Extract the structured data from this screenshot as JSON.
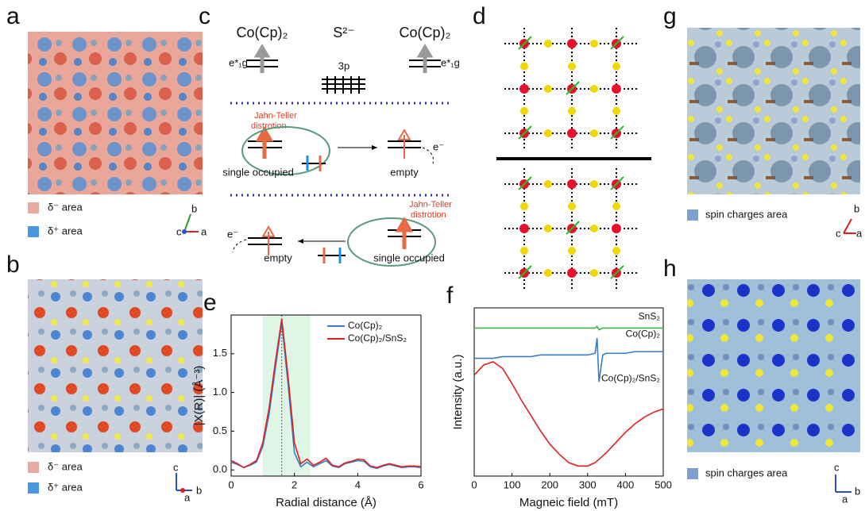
{
  "panels": {
    "a": {
      "label": "a",
      "legend": [
        "δ⁻ area",
        "δ⁺ area"
      ],
      "axes": [
        "c",
        "b",
        "a"
      ]
    },
    "b": {
      "label": "b",
      "legend": [
        "δ⁻ area",
        "δ⁺ area"
      ],
      "axes": [
        "c",
        "a",
        "b"
      ]
    },
    "c": {
      "label": "c",
      "left": "Co(Cp)₂",
      "center": "S²⁻",
      "right": "Co(Cp)₂",
      "level_left": "e*₁g",
      "level_right": "e*₁g",
      "orbital": "3p",
      "jt_top": [
        "Jahn-Teller",
        "distrotion"
      ],
      "occupied_top": "single occupied",
      "empty_top": "empty",
      "electron_top": "e⁻",
      "jt_bottom": [
        "Jahn-Teller",
        "distrotion"
      ],
      "occupied_bottom": "single occupied",
      "empty_bottom": "empty",
      "electron_bottom": "e⁻"
    },
    "d": {
      "label": "d"
    },
    "g": {
      "label": "g",
      "legend": "spin charges area",
      "axes": [
        "c",
        "a",
        "b"
      ]
    },
    "h": {
      "label": "h",
      "legend": "spin charges area",
      "axes": [
        "c",
        "a",
        "b"
      ]
    }
  },
  "chart_data": [
    {
      "type": "line",
      "panel": "e",
      "x_label": "Radial distance (Å)",
      "y_label": "|X(R)| (Å⁻³)",
      "x": [
        0,
        0.2,
        0.4,
        0.6,
        0.8,
        1.0,
        1.2,
        1.4,
        1.6,
        1.8,
        2.0,
        2.2,
        2.4,
        2.6,
        2.8,
        3.0,
        3.2,
        3.4,
        3.6,
        3.8,
        4.0,
        4.2,
        4.4,
        4.6,
        4.8,
        5.0,
        5.2,
        5.4,
        5.6,
        5.8,
        6.0
      ],
      "series": [
        {
          "name": "Co(Cp)₂",
          "color": "#3a7cc4",
          "values": [
            0.1,
            0.07,
            0.03,
            0.06,
            0.1,
            0.3,
            0.72,
            1.32,
            1.9,
            1.1,
            0.22,
            0.04,
            0.1,
            0.04,
            0.08,
            0.12,
            0.05,
            0.03,
            0.08,
            0.1,
            0.12,
            0.11,
            0.04,
            0.02,
            0.05,
            0.07,
            0.05,
            0.03,
            0.04,
            0.04,
            0.03
          ]
        },
        {
          "name": "Co(Cp)₂/SnS₂",
          "color": "#e02020",
          "values": [
            0.12,
            0.08,
            0.03,
            0.07,
            0.12,
            0.35,
            0.8,
            1.4,
            1.95,
            1.2,
            0.35,
            0.08,
            0.14,
            0.06,
            0.1,
            0.15,
            0.06,
            0.04,
            0.09,
            0.11,
            0.14,
            0.13,
            0.05,
            0.03,
            0.06,
            0.08,
            0.06,
            0.04,
            0.05,
            0.05,
            0.04
          ]
        }
      ],
      "shaded_range": [
        1.0,
        2.5
      ],
      "reference_line": 1.6,
      "xlim": [
        0,
        6
      ],
      "xticks": [
        0,
        2,
        4,
        6
      ],
      "ylim": [
        -0.08,
        2.0
      ],
      "yticks": [
        {
          "value": 0,
          "label": "0.0"
        },
        0.5,
        {
          "value": 1,
          "label": "1.0"
        },
        1.5
      ]
    },
    {
      "type": "line",
      "panel": "f",
      "x_label": "Magneic field (mT)",
      "y_label": "Intensity (a.u.)",
      "x": [
        0,
        25,
        50,
        75,
        100,
        125,
        150,
        175,
        200,
        225,
        250,
        275,
        300,
        320,
        325,
        330,
        340,
        350,
        375,
        400,
        425,
        450,
        475,
        500
      ],
      "series": [
        {
          "name": "SnS₂",
          "color": "#3cb44b",
          "values": [
            0.88,
            0.88,
            0.88,
            0.88,
            0.88,
            0.88,
            0.88,
            0.88,
            0.88,
            0.88,
            0.88,
            0.88,
            0.88,
            0.88,
            0.89,
            0.87,
            0.88,
            0.88,
            0.88,
            0.88,
            0.88,
            0.88,
            0.88,
            0.88
          ]
        },
        {
          "name": "Co(Cp)₂",
          "color": "#3a7cc4",
          "values": [
            0.7,
            0.7,
            0.7,
            0.71,
            0.71,
            0.71,
            0.71,
            0.72,
            0.72,
            0.72,
            0.72,
            0.72,
            0.72,
            0.73,
            0.82,
            0.56,
            0.72,
            0.73,
            0.73,
            0.73,
            0.74,
            0.74,
            0.74,
            0.74
          ]
        },
        {
          "name": "Co(Cp)₂/SnS₂",
          "color": "#e02020",
          "values": [
            0.6,
            0.66,
            0.68,
            0.64,
            0.55,
            0.45,
            0.36,
            0.27,
            0.19,
            0.13,
            0.08,
            0.06,
            0.06,
            0.08,
            0.09,
            0.1,
            0.12,
            0.14,
            0.2,
            0.26,
            0.31,
            0.35,
            0.38,
            0.4
          ]
        }
      ],
      "xlim": [
        0,
        500
      ],
      "xticks": [
        0,
        100,
        200,
        300,
        400,
        500
      ],
      "ylim": [
        0,
        1
      ]
    }
  ]
}
